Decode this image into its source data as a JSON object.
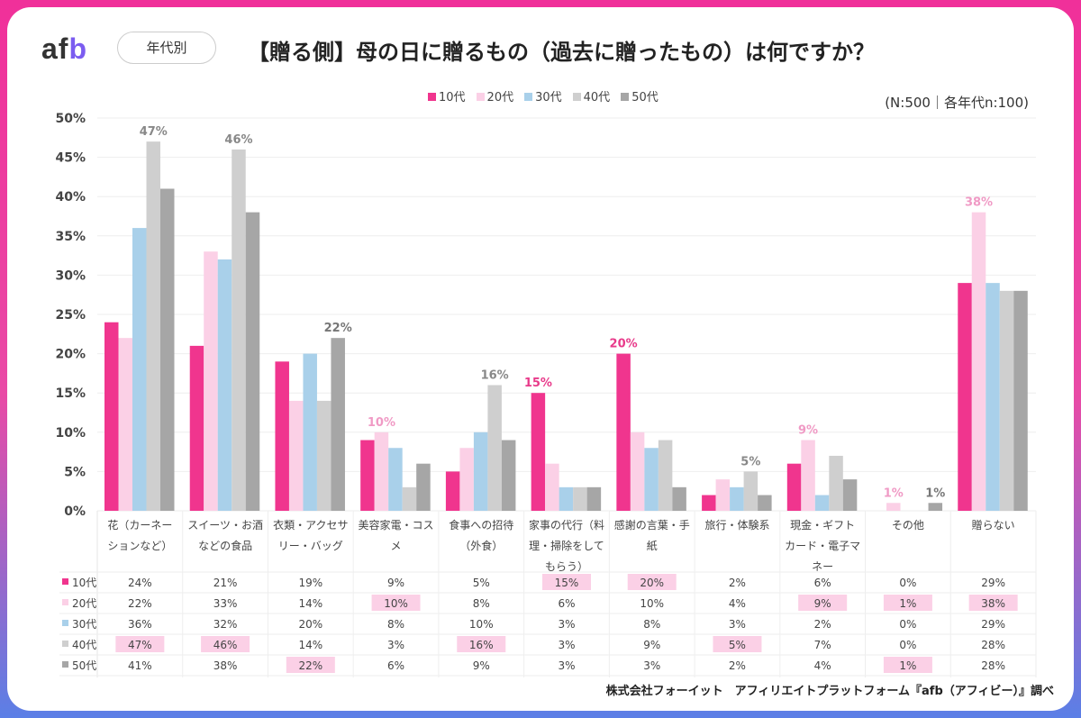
{
  "header": {
    "logo_a": "af",
    "logo_b": "b",
    "badge": "年代別",
    "title": "【贈る側】母の日に贈るもの（過去に贈ったもの）は何ですか？",
    "note": "(N:500｜各年代n:100)"
  },
  "footer": "株式会社フォーイット　アフィリエイトプラットフォーム『afb（アフィビー）』調べ",
  "chart_data": {
    "type": "bar",
    "title": "【贈る側】母の日に贈るもの（過去に贈ったもの）は何ですか？",
    "ylim": [
      0,
      50
    ],
    "yticks": [
      "0%",
      "5%",
      "10%",
      "15%",
      "20%",
      "25%",
      "30%",
      "35%",
      "40%",
      "45%",
      "50%"
    ],
    "categories": [
      [
        "花（カーネー",
        "ションなど）"
      ],
      [
        "スイーツ・お酒",
        "などの食品"
      ],
      [
        "衣類・アクセサ",
        "リー・バッグ"
      ],
      [
        "美容家電・コス",
        "メ"
      ],
      [
        "食事への招待",
        "（外食）"
      ],
      [
        "家事の代行（料",
        "理・掃除をして",
        "もらう）"
      ],
      [
        "感謝の言葉・手",
        "紙"
      ],
      [
        "旅行・体験系"
      ],
      [
        "現金・ギフト",
        "カード・電子マ",
        "ネー"
      ],
      [
        "その他"
      ],
      [
        "贈らない"
      ]
    ],
    "series": [
      {
        "name": "10代",
        "color": "#f0358e",
        "values": [
          24,
          21,
          19,
          9,
          5,
          15,
          20,
          2,
          6,
          0,
          29
        ]
      },
      {
        "name": "20代",
        "color": "#fbd0e6",
        "values": [
          22,
          33,
          14,
          10,
          8,
          6,
          10,
          4,
          9,
          1,
          38
        ]
      },
      {
        "name": "30代",
        "color": "#a9d0ea",
        "values": [
          36,
          32,
          20,
          8,
          10,
          3,
          8,
          3,
          2,
          0,
          29
        ]
      },
      {
        "name": "40代",
        "color": "#cfcfcf",
        "values": [
          47,
          46,
          14,
          3,
          16,
          3,
          9,
          5,
          7,
          0,
          28
        ]
      },
      {
        "name": "50代",
        "color": "#a6a6a6",
        "values": [
          41,
          38,
          22,
          6,
          9,
          3,
          3,
          2,
          4,
          1,
          28
        ]
      }
    ],
    "highlight_color": "#fbd0e6",
    "label_colors": {
      "10代": "#e83a8a",
      "20代": "#f09ac5",
      "40代": "#888888",
      "50代": "#777777"
    },
    "legend_position": "top-center",
    "grid": true
  }
}
